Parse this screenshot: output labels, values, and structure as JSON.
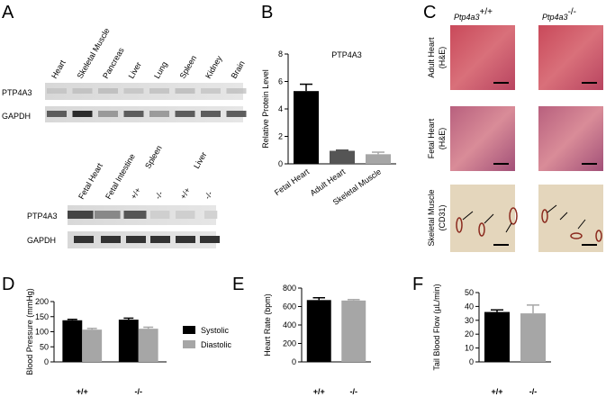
{
  "panel_labels": [
    "A",
    "B",
    "C",
    "D",
    "E",
    "F"
  ],
  "blot_top": {
    "lanes": [
      "Heart",
      "Skeletal Muscle",
      "Pancreas",
      "Liver",
      "Lung",
      "Spleen",
      "Kidney",
      "Brain"
    ],
    "rows": [
      "PTP4A3",
      "GAPDH"
    ]
  },
  "blot_bottom": {
    "lanes": [
      "Fetal Heart",
      "Fetal Intestine",
      "Spleen",
      "Liver"
    ],
    "genotypes": [
      "+/+",
      "-/-",
      "+/+",
      "-/-"
    ],
    "rows": [
      "PTP4A3",
      "GAPDH"
    ]
  },
  "histology": {
    "columns": [
      {
        "gene": "Ptp4a3",
        "genotype": "+/+"
      },
      {
        "gene": "Ptp4a3",
        "genotype": "-/-"
      }
    ],
    "rows": [
      [
        "Adult Heart",
        "(H&E)"
      ],
      [
        "Fetal Heart",
        "(H&E)"
      ],
      [
        "Skeletal Muscle",
        "(CD31)"
      ]
    ]
  },
  "chart_data": [
    {
      "type": "bar",
      "title": "PTP4A3",
      "y_label": "Relative Protein Level",
      "categories": [
        "Fetal Heart",
        "Adult Heart",
        "Skeletal Muscle"
      ],
      "values": [
        5.3,
        0.95,
        0.7
      ],
      "errors": [
        0.5,
        0.05,
        0.15
      ],
      "colors": [
        "#000000",
        "#555555",
        "#a6a6a6"
      ],
      "ylim": [
        0,
        8
      ],
      "yticks": [
        0,
        2,
        4,
        6,
        8
      ]
    },
    {
      "type": "bar",
      "y_label": "Blood Pressure (mmHg)",
      "categories": [
        "+/+",
        "-/-"
      ],
      "series": [
        {
          "name": "Systolic",
          "color": "#000000",
          "values": [
            138,
            140
          ],
          "errors": [
            3,
            5
          ]
        },
        {
          "name": "Diastolic",
          "color": "#a6a6a6",
          "values": [
            107,
            110
          ],
          "errors": [
            4,
            5
          ]
        }
      ],
      "ylim": [
        0,
        200
      ],
      "yticks": [
        0,
        50,
        100,
        150,
        200
      ],
      "legend": "right"
    },
    {
      "type": "bar",
      "y_label": "Heart Rate (bpm)",
      "categories": [
        "+/+",
        "-/-"
      ],
      "values": [
        670,
        665
      ],
      "errors": [
        25,
        10
      ],
      "colors": [
        "#000000",
        "#a6a6a6"
      ],
      "ylim": [
        0,
        800
      ],
      "yticks": [
        0,
        200,
        400,
        600,
        800
      ]
    },
    {
      "type": "bar",
      "y_label": "Tail Blood Flow (µL/min)",
      "categories": [
        "+/+",
        "-/-"
      ],
      "values": [
        36,
        35
      ],
      "errors": [
        1.5,
        6
      ],
      "colors": [
        "#000000",
        "#a6a6a6"
      ],
      "ylim": [
        0,
        50
      ],
      "yticks": [
        0,
        10,
        20,
        30,
        40,
        50
      ]
    }
  ]
}
